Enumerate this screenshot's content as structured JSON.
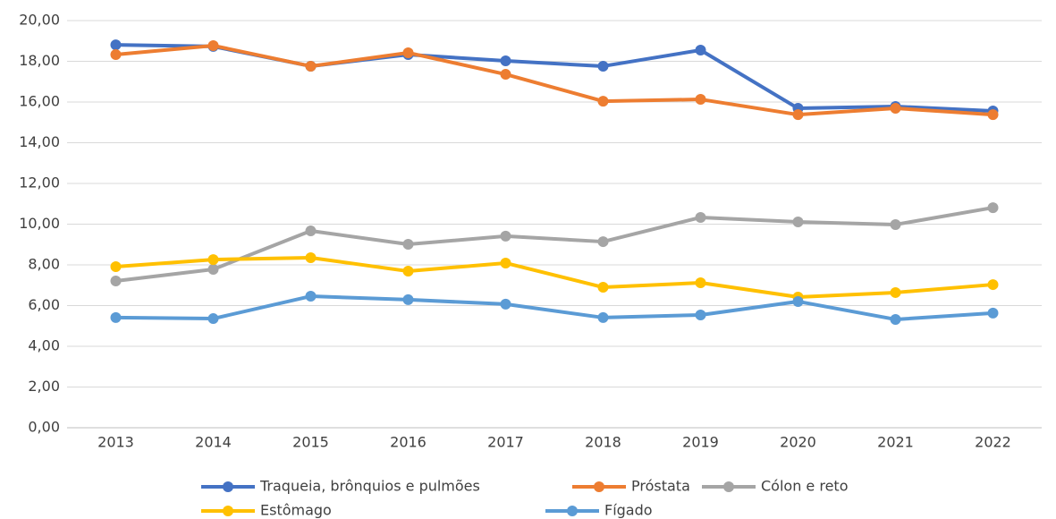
{
  "chart_data": {
    "type": "line",
    "categories": [
      "2013",
      "2014",
      "2015",
      "2016",
      "2017",
      "2018",
      "2019",
      "2020",
      "2021",
      "2022"
    ],
    "series": [
      {
        "name": "Traqueia, brônquios e pulmões",
        "color": "#4472c4",
        "values": [
          18.81,
          18.73,
          17.76,
          18.33,
          18.02,
          17.76,
          18.55,
          15.69,
          15.78,
          15.56
        ]
      },
      {
        "name": "Próstata",
        "color": "#ed7d31",
        "values": [
          18.33,
          18.77,
          17.76,
          18.42,
          17.36,
          16.04,
          16.13,
          15.38,
          15.69,
          15.38
        ]
      },
      {
        "name": "Cólon e reto",
        "color": "#a5a5a5",
        "values": [
          7.21,
          7.78,
          9.67,
          9.01,
          9.41,
          9.14,
          10.33,
          10.11,
          9.98,
          10.81
        ]
      },
      {
        "name": "Estômago",
        "color": "#ffc000",
        "values": [
          7.91,
          8.26,
          8.35,
          7.69,
          8.09,
          6.9,
          7.12,
          6.42,
          6.64,
          7.03
        ]
      },
      {
        "name": "Fígado",
        "color": "#5b9bd5",
        "values": [
          5.41,
          5.36,
          6.46,
          6.29,
          6.07,
          5.41,
          5.54,
          6.2,
          5.32,
          5.63
        ]
      }
    ],
    "ylim": [
      0,
      20
    ],
    "yticks": [
      {
        "value": 0,
        "label": "0,00"
      },
      {
        "value": 2,
        "label": "2,00"
      },
      {
        "value": 4,
        "label": "4,00"
      },
      {
        "value": 6,
        "label": "6,00"
      },
      {
        "value": 8,
        "label": "8,00"
      },
      {
        "value": 10,
        "label": "10,00"
      },
      {
        "value": 12,
        "label": "12,00"
      },
      {
        "value": 14,
        "label": "14,00"
      },
      {
        "value": 16,
        "label": "16,00"
      },
      {
        "value": 18,
        "label": "18,00"
      },
      {
        "value": 20,
        "label": "20,00"
      }
    ],
    "grid": true,
    "legend": "bottom"
  }
}
